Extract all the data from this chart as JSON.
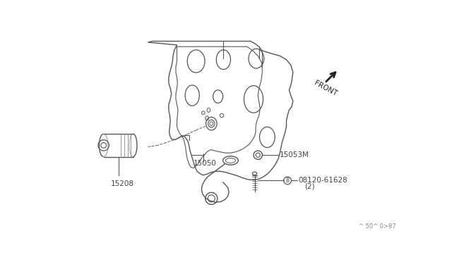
{
  "bg_color": "#ffffff",
  "line_color": "#555555",
  "text_color": "#444444",
  "watermark": "^ 50^ 0>87",
  "front_label": "FRONT",
  "figsize": [
    6.4,
    3.72
  ],
  "dpi": 100
}
